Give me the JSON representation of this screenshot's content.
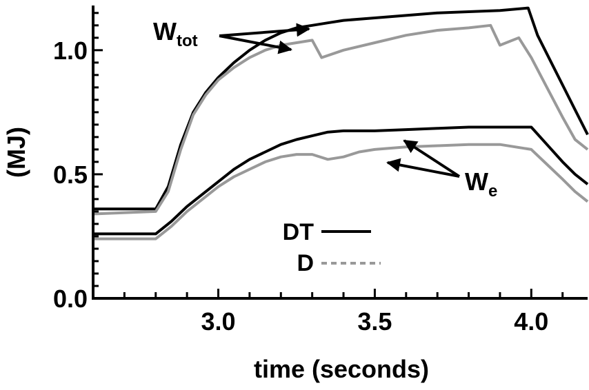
{
  "chart_data": {
    "type": "line",
    "xlabel": "time (seconds)",
    "ylabel": "(MJ)",
    "xlim": [
      2.6,
      4.18
    ],
    "ylim": [
      0.0,
      1.18
    ],
    "x_ticks": [
      "3.0",
      "3.5",
      "4.0"
    ],
    "x_tick_values": [
      3.0,
      3.5,
      4.0
    ],
    "y_ticks": [
      "0.0",
      "0.5",
      "1.0"
    ],
    "y_tick_values": [
      0.0,
      0.5,
      1.0
    ],
    "legend": [
      {
        "label": "DT",
        "color": "#000000",
        "style": "solid"
      },
      {
        "label": "D",
        "color": "#999999",
        "style": "dashed"
      }
    ],
    "annotations": [
      {
        "base": "W",
        "sub": "tot"
      },
      {
        "base": "W",
        "sub": "e"
      }
    ],
    "series": [
      {
        "name": "DT",
        "group": "W_tot",
        "color": "#000000",
        "points": [
          [
            2.6,
            0.36
          ],
          [
            2.8,
            0.36
          ],
          [
            2.84,
            0.45
          ],
          [
            2.88,
            0.62
          ],
          [
            2.92,
            0.75
          ],
          [
            2.96,
            0.83
          ],
          [
            3.0,
            0.89
          ],
          [
            3.05,
            0.95
          ],
          [
            3.1,
            1.0
          ],
          [
            3.15,
            1.04
          ],
          [
            3.2,
            1.07
          ],
          [
            3.25,
            1.09
          ],
          [
            3.3,
            1.1
          ],
          [
            3.35,
            1.11
          ],
          [
            3.4,
            1.12
          ],
          [
            3.5,
            1.13
          ],
          [
            3.6,
            1.14
          ],
          [
            3.7,
            1.15
          ],
          [
            3.8,
            1.155
          ],
          [
            3.9,
            1.16
          ],
          [
            3.99,
            1.17
          ],
          [
            4.02,
            1.06
          ],
          [
            4.06,
            0.96
          ],
          [
            4.1,
            0.86
          ],
          [
            4.14,
            0.76
          ],
          [
            4.18,
            0.66
          ]
        ]
      },
      {
        "name": "D",
        "group": "W_tot",
        "color": "#999999",
        "points": [
          [
            2.6,
            0.34
          ],
          [
            2.8,
            0.35
          ],
          [
            2.84,
            0.43
          ],
          [
            2.88,
            0.6
          ],
          [
            2.92,
            0.74
          ],
          [
            2.96,
            0.82
          ],
          [
            3.0,
            0.88
          ],
          [
            3.05,
            0.93
          ],
          [
            3.1,
            0.97
          ],
          [
            3.15,
            1.0
          ],
          [
            3.2,
            1.02
          ],
          [
            3.25,
            1.03
          ],
          [
            3.3,
            1.04
          ],
          [
            3.33,
            0.97
          ],
          [
            3.4,
            1.0
          ],
          [
            3.5,
            1.03
          ],
          [
            3.6,
            1.06
          ],
          [
            3.7,
            1.08
          ],
          [
            3.8,
            1.09
          ],
          [
            3.87,
            1.1
          ],
          [
            3.9,
            1.02
          ],
          [
            3.96,
            1.05
          ],
          [
            4.0,
            0.97
          ],
          [
            4.05,
            0.85
          ],
          [
            4.1,
            0.73
          ],
          [
            4.14,
            0.64
          ],
          [
            4.18,
            0.6
          ]
        ]
      },
      {
        "name": "DT",
        "group": "W_e",
        "color": "#000000",
        "points": [
          [
            2.6,
            0.26
          ],
          [
            2.8,
            0.26
          ],
          [
            2.85,
            0.31
          ],
          [
            2.9,
            0.37
          ],
          [
            2.95,
            0.42
          ],
          [
            3.0,
            0.47
          ],
          [
            3.05,
            0.52
          ],
          [
            3.1,
            0.56
          ],
          [
            3.15,
            0.59
          ],
          [
            3.2,
            0.62
          ],
          [
            3.25,
            0.64
          ],
          [
            3.3,
            0.655
          ],
          [
            3.35,
            0.67
          ],
          [
            3.4,
            0.675
          ],
          [
            3.5,
            0.675
          ],
          [
            3.6,
            0.68
          ],
          [
            3.7,
            0.685
          ],
          [
            3.8,
            0.69
          ],
          [
            3.9,
            0.69
          ],
          [
            4.0,
            0.69
          ],
          [
            4.05,
            0.62
          ],
          [
            4.1,
            0.55
          ],
          [
            4.14,
            0.5
          ],
          [
            4.18,
            0.46
          ]
        ]
      },
      {
        "name": "D",
        "group": "W_e",
        "color": "#999999",
        "points": [
          [
            2.6,
            0.24
          ],
          [
            2.8,
            0.24
          ],
          [
            2.85,
            0.29
          ],
          [
            2.9,
            0.35
          ],
          [
            2.95,
            0.4
          ],
          [
            3.0,
            0.45
          ],
          [
            3.05,
            0.49
          ],
          [
            3.1,
            0.52
          ],
          [
            3.15,
            0.55
          ],
          [
            3.2,
            0.57
          ],
          [
            3.25,
            0.58
          ],
          [
            3.3,
            0.58
          ],
          [
            3.35,
            0.56
          ],
          [
            3.4,
            0.57
          ],
          [
            3.45,
            0.59
          ],
          [
            3.5,
            0.6
          ],
          [
            3.6,
            0.61
          ],
          [
            3.7,
            0.615
          ],
          [
            3.8,
            0.62
          ],
          [
            3.9,
            0.62
          ],
          [
            4.0,
            0.6
          ],
          [
            4.05,
            0.54
          ],
          [
            4.1,
            0.48
          ],
          [
            4.14,
            0.43
          ],
          [
            4.18,
            0.39
          ]
        ]
      }
    ]
  }
}
